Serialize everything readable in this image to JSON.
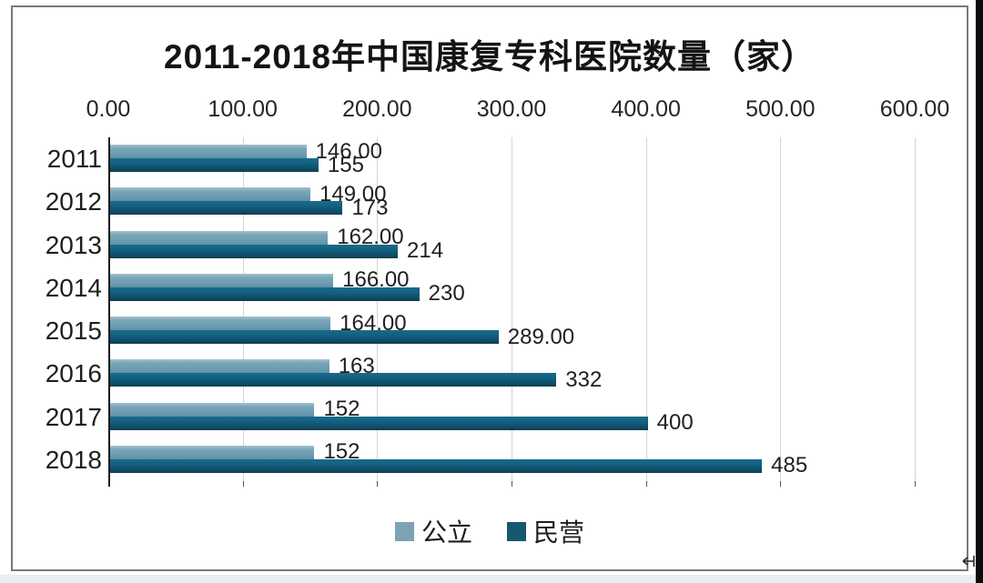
{
  "chart_data": {
    "type": "bar",
    "orientation": "horizontal",
    "title": "2011-2018年中国康复专科医院数量（家）",
    "categories": [
      "2011",
      "2012",
      "2013",
      "2014",
      "2015",
      "2016",
      "2017",
      "2018"
    ],
    "series": [
      {
        "name": "公立",
        "color": "#7ba3b5",
        "values": [
          146,
          149,
          162,
          166,
          164,
          163,
          152,
          152
        ],
        "labels": [
          "146.00",
          "149.00",
          "162.00",
          "166.00",
          "164.00",
          "163",
          "152",
          "152"
        ]
      },
      {
        "name": "民营",
        "color": "#16586f",
        "values": [
          155,
          173,
          214,
          230,
          289,
          332,
          400,
          485
        ],
        "labels": [
          "155",
          "173",
          "214",
          "230",
          "289.00",
          "332",
          "400",
          "485"
        ]
      }
    ],
    "x_axis": {
      "position": "top",
      "min": 0,
      "max": 600,
      "ticks": [
        "0.00",
        "100.00",
        "200.00",
        "300.00",
        "400.00",
        "500.00",
        "600.00"
      ]
    },
    "legend_position": "bottom",
    "grid": true
  },
  "colors": {
    "public_bar": "#7ba3b5",
    "private_bar": "#135e7d",
    "gridline": "#d4d4d4",
    "axis": "#1a1a1a",
    "frame_border": "#7a7a7a",
    "title_text": "#141414",
    "label_text": "#1f1f1f",
    "right_strip": "#0d0d0d"
  }
}
